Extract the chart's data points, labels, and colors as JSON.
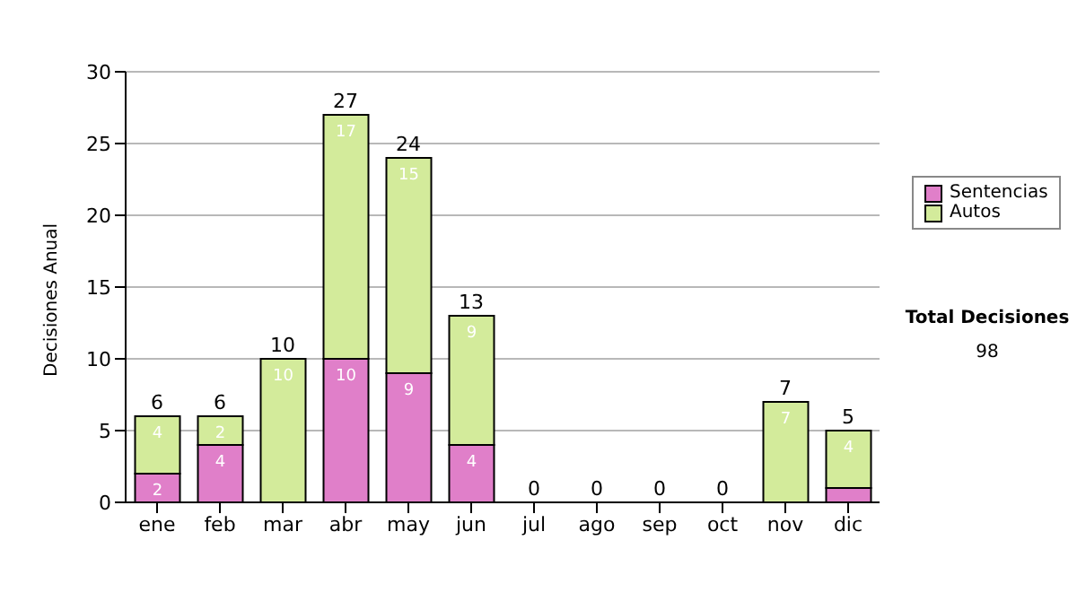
{
  "chart_data": {
    "type": "bar",
    "stacked": true,
    "ylabel": "Decisiones Anual",
    "categories": [
      "ene",
      "feb",
      "mar",
      "abr",
      "may",
      "jun",
      "jul",
      "ago",
      "sep",
      "oct",
      "nov",
      "dic"
    ],
    "series": [
      {
        "name": "Sentencias",
        "color": "#e07fc9",
        "values": [
          2,
          4,
          0,
          10,
          9,
          4,
          0,
          0,
          0,
          0,
          0,
          1
        ],
        "value_labels": [
          "2",
          "4",
          null,
          "10",
          "9",
          "4",
          null,
          null,
          null,
          null,
          null,
          null
        ]
      },
      {
        "name": "Autos",
        "color": "#d3eb9b",
        "values": [
          4,
          2,
          10,
          17,
          15,
          9,
          0,
          0,
          0,
          0,
          7,
          4
        ],
        "value_labels": [
          "4",
          "2",
          "10",
          "17",
          "15",
          "9",
          null,
          null,
          null,
          null,
          "7",
          "4"
        ]
      }
    ],
    "totals": [
      "6",
      "6",
      "10",
      "27",
      "24",
      "13",
      "0",
      "0",
      "0",
      "0",
      "7",
      "5"
    ],
    "ylim": [
      0,
      30
    ],
    "yticks": [
      0,
      5,
      10,
      15,
      20,
      25,
      30
    ],
    "grid": "y",
    "legend": "right",
    "annotations": [
      "Total Decisiones",
      "98"
    ]
  }
}
